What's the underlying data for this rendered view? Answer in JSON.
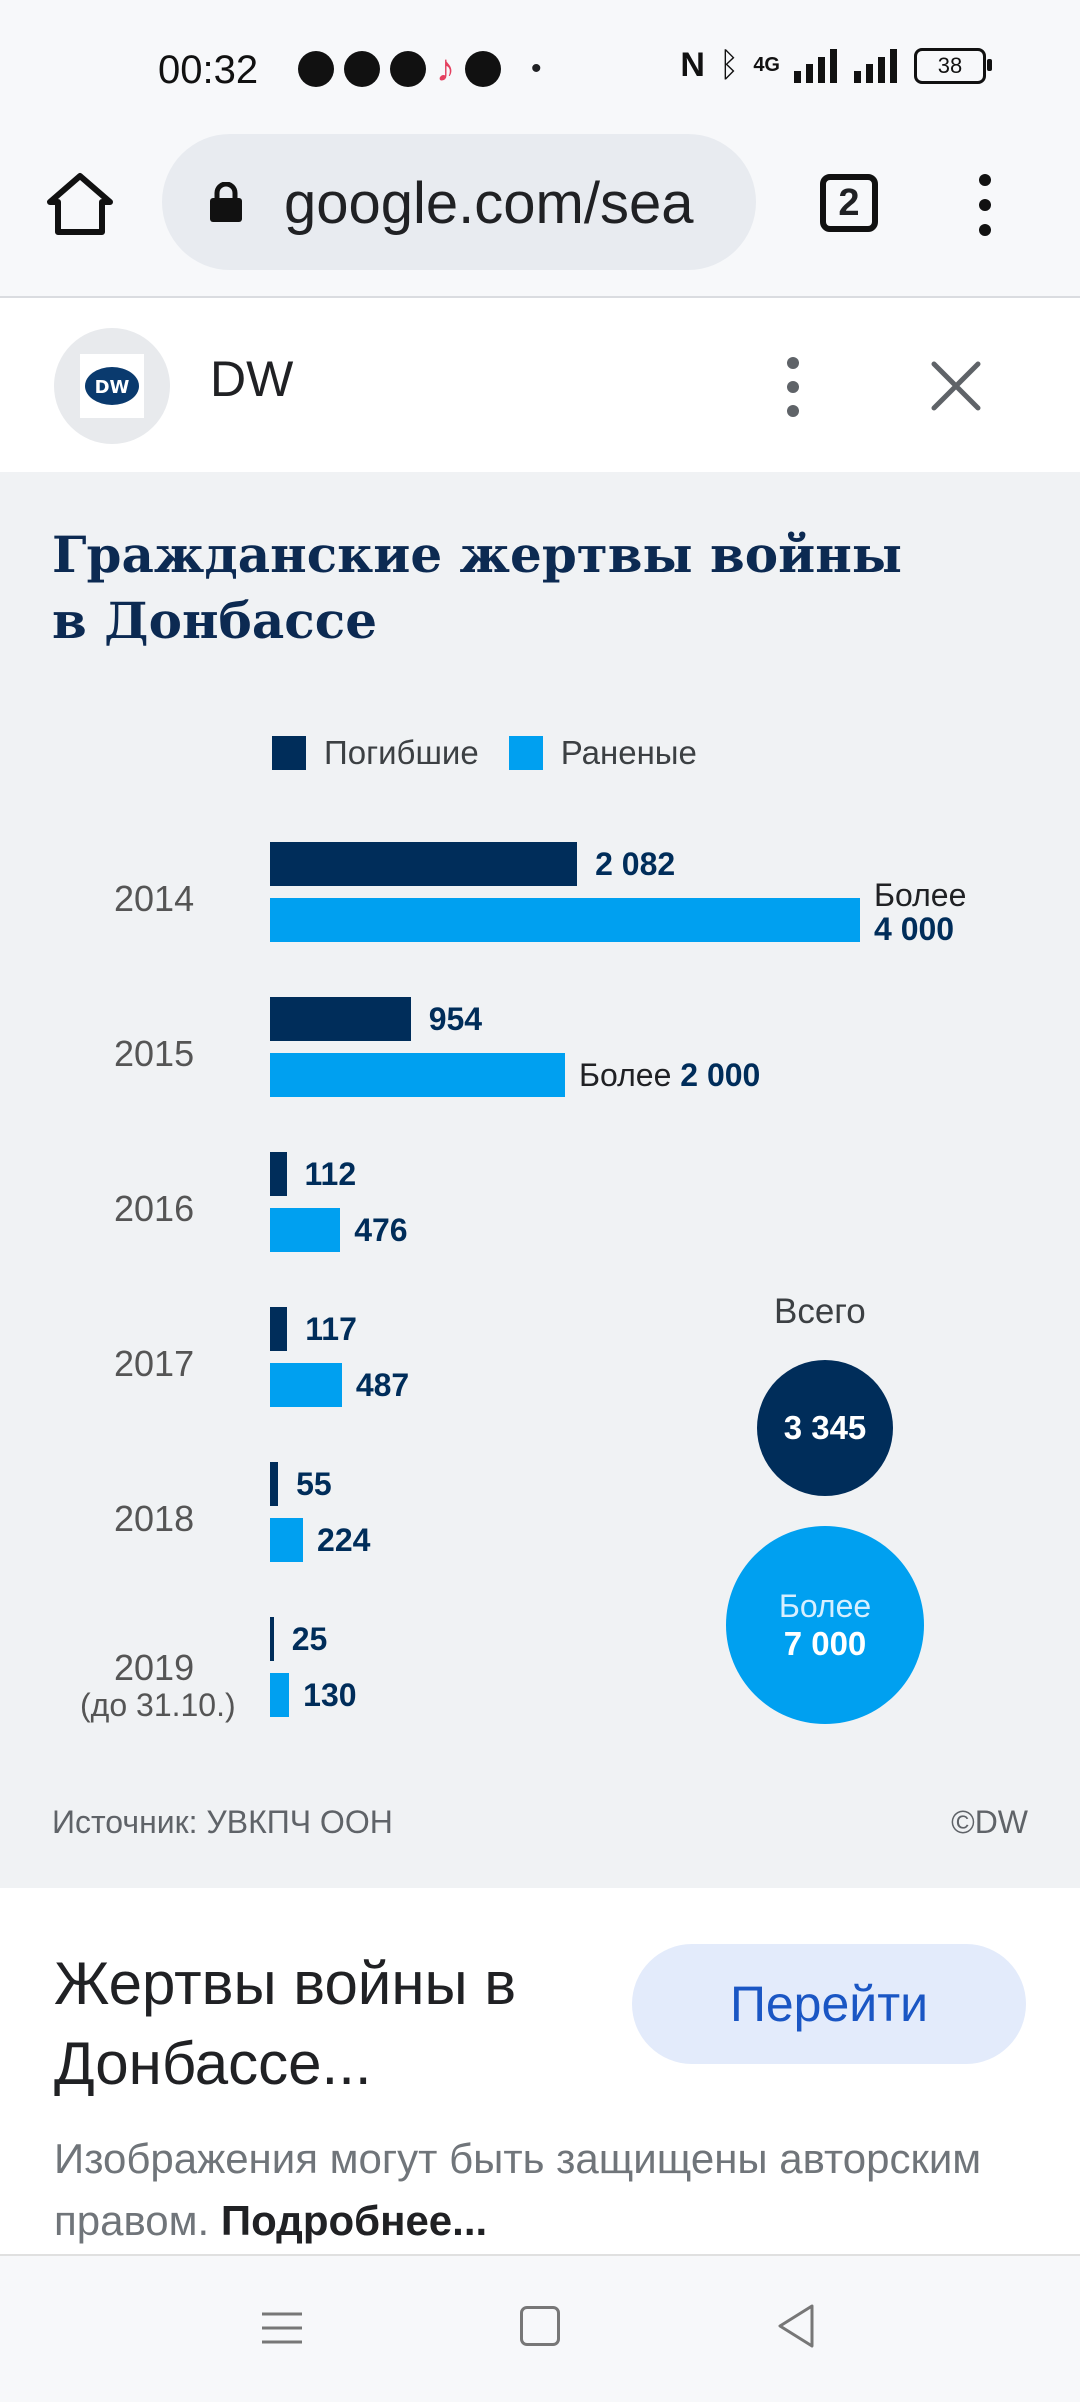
{
  "status_bar": {
    "time": "00:32",
    "network": "4G",
    "battery": "38"
  },
  "browser": {
    "url": "google.com/sea",
    "tab_count": "2"
  },
  "sheet": {
    "source_name": "DW",
    "logo_text": "DW"
  },
  "chart_data": {
    "type": "bar",
    "orientation": "horizontal",
    "title": "Гражданские жертвы войны в Донбассе",
    "categories": [
      "2014",
      "2015",
      "2016",
      "2017",
      "2018",
      "2019"
    ],
    "category_notes": {
      "2019": "(до 31.10.)"
    },
    "series": [
      {
        "name": "Погибшие",
        "color": "#002d5a",
        "values": [
          2082,
          954,
          112,
          117,
          55,
          25
        ],
        "labels": [
          "2 082",
          "954",
          "112",
          "117",
          "55",
          "25"
        ]
      },
      {
        "name": "Раненые",
        "color": "#00a0f0",
        "values": [
          4000,
          2000,
          476,
          487,
          224,
          130
        ],
        "labels": [
          "4 000",
          "2 000",
          "476",
          "487",
          "224",
          "130"
        ],
        "label_prefix": [
          "Более",
          "Более",
          "",
          "",
          "",
          ""
        ]
      }
    ],
    "totals": {
      "label": "Всего",
      "killed": "3 345",
      "wounded_prefix": "Более",
      "wounded": "7 000"
    },
    "source": "Источник: УВКПЧ ООН",
    "copyright": "©DW"
  },
  "info": {
    "title": "Жертвы войны в Донбассе...",
    "go_button": "Перейти",
    "notice": "Изображения могут быть защищены авторским правом.",
    "more_link": "Подробнее..."
  }
}
